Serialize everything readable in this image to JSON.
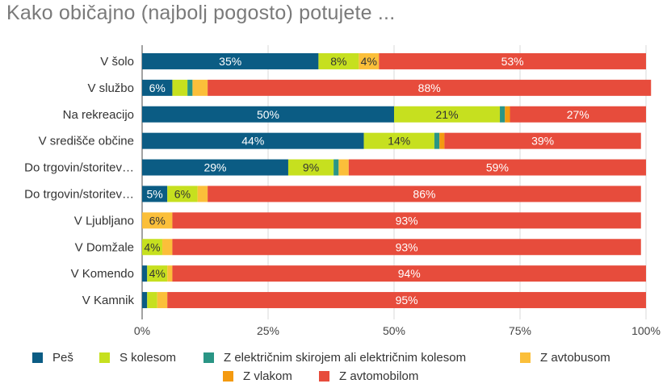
{
  "chart_data": {
    "type": "bar",
    "orientation": "horizontal",
    "stacked": true,
    "title": "Kako običajno (najbolj pogosto) potujete ...",
    "categories": [
      "V šolo",
      "V službo",
      "Na rekreacijo",
      "V središče občine",
      "Do trgovin/storitev…",
      "Do trgovin/storitev…",
      "V Ljubljano",
      "V Domžale",
      "V Komendo",
      "V Kamnik"
    ],
    "series": [
      {
        "name": "Peš",
        "color": "#0b5c84",
        "values": [
          35,
          6,
          50,
          44,
          29,
          5,
          0,
          0,
          1,
          1
        ]
      },
      {
        "name": "S kolesom",
        "color": "#c6e01f",
        "values": [
          8,
          3,
          21,
          14,
          9,
          6,
          0,
          4,
          4,
          2
        ]
      },
      {
        "name": "Z električnim skirojem ali električnim kolesom",
        "color": "#2a9585",
        "values": [
          0,
          1,
          1,
          1,
          1,
          0,
          0,
          0,
          0,
          0
        ]
      },
      {
        "name": "Z avtobusom",
        "color": "#fbbf3a",
        "values": [
          4,
          3,
          0,
          0,
          2,
          2,
          6,
          2,
          1,
          2
        ]
      },
      {
        "name": "Z vlakom",
        "color": "#f49a10",
        "values": [
          0,
          0,
          1,
          1,
          0,
          0,
          0,
          0,
          0,
          0
        ]
      },
      {
        "name": "Z avtomobilom",
        "color": "#e74c3c",
        "values": [
          53,
          88,
          27,
          39,
          59,
          86,
          93,
          93,
          94,
          95
        ]
      }
    ],
    "data_labels": [
      [
        "35%",
        "8%",
        "",
        "4%",
        "",
        "53%"
      ],
      [
        "6%",
        "",
        "",
        "",
        "",
        "88%"
      ],
      [
        "50%",
        "21%",
        "",
        "",
        "",
        "27%"
      ],
      [
        "44%",
        "14%",
        "",
        "",
        "",
        "39%"
      ],
      [
        "29%",
        "9%",
        "",
        "",
        "",
        "59%"
      ],
      [
        "5%",
        "6%",
        "",
        "",
        "",
        "86%"
      ],
      [
        "",
        "",
        "",
        "6%",
        "",
        "93%"
      ],
      [
        "",
        "4%",
        "",
        "",
        "",
        "93%"
      ],
      [
        "",
        "4%",
        "",
        "",
        "",
        "94%"
      ],
      [
        "",
        "",
        "",
        "",
        "",
        "95%"
      ]
    ],
    "x_ticks": [
      "0%",
      "25%",
      "50%",
      "75%",
      "100%"
    ],
    "xlim": [
      0,
      100
    ],
    "grid": true,
    "legend_position": "bottom"
  }
}
